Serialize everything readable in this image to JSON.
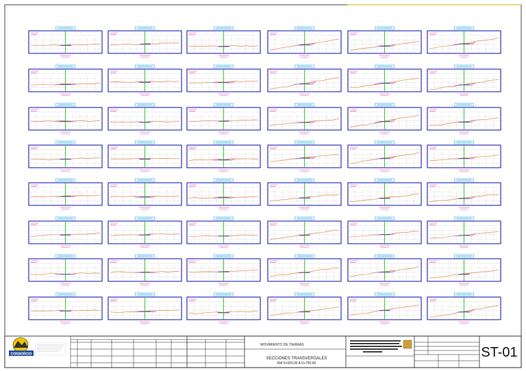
{
  "drawing": {
    "grid_rows": 8,
    "grid_cols": 6,
    "colors": {
      "frame": "#1a1a1a",
      "panel_border": "#1e22b0",
      "grid_line": "#c9c9c9",
      "terrain": "#e08a52",
      "fill_area": "#f7c6c2",
      "centerline": "#1fc21f",
      "label_box": "#29a9e0",
      "magenta_text": "#e040c0",
      "side_slope": "#8a66cc",
      "accent_line": "#e0b000"
    }
  },
  "title_block": {
    "company_name": "CONSORCIO",
    "subject": "MOVIMIENTO DE TIERRAS",
    "sheet_title_line1": "SECCIONES TRANSVERSALES",
    "sheet_title_line2": "KM 0+000,00 A 0+700,00",
    "sheet_code": "ST-01"
  }
}
